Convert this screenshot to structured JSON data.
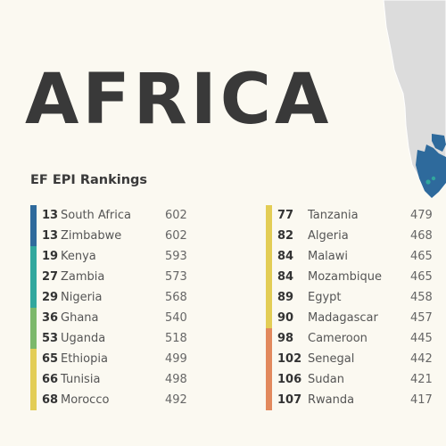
{
  "page": {
    "title": "AFRICA",
    "subtitle": "EF EPI Rankings"
  },
  "colors": {
    "background": "#fbf9f1",
    "very_high": "#2e6a9c",
    "high": "#31a79d",
    "moderate": "#7cb86a",
    "low": "#e3cd55",
    "very_low": "#e2895d",
    "map_land": "#dcdcdc",
    "map_country": "#2e6a9c"
  },
  "rankings": {
    "left": [
      {
        "rank": "13",
        "country": "South Africa",
        "score": "602",
        "color": "#2e6a9c"
      },
      {
        "rank": "13",
        "country": "Zimbabwe",
        "score": "602",
        "color": "#2e6a9c"
      },
      {
        "rank": "19",
        "country": "Kenya",
        "score": "593",
        "color": "#31a79d"
      },
      {
        "rank": "27",
        "country": "Zambia",
        "score": "573",
        "color": "#31a79d"
      },
      {
        "rank": "29",
        "country": "Nigeria",
        "score": "568",
        "color": "#31a79d"
      },
      {
        "rank": "36",
        "country": "Ghana",
        "score": "540",
        "color": "#7cb86a"
      },
      {
        "rank": "53",
        "country": "Uganda",
        "score": "518",
        "color": "#7cb86a"
      },
      {
        "rank": "65",
        "country": "Ethiopia",
        "score": "499",
        "color": "#e3cd55"
      },
      {
        "rank": "66",
        "country": "Tunisia",
        "score": "498",
        "color": "#e3cd55"
      },
      {
        "rank": "68",
        "country": "Morocco",
        "score": "492",
        "color": "#e3cd55"
      }
    ],
    "right": [
      {
        "rank": "77",
        "country": "Tanzania",
        "score": "479",
        "color": "#e3cd55"
      },
      {
        "rank": "82",
        "country": "Algeria",
        "score": "468",
        "color": "#e3cd55"
      },
      {
        "rank": "84",
        "country": "Malawi",
        "score": "465",
        "color": "#e3cd55"
      },
      {
        "rank": "84",
        "country": "Mozambique",
        "score": "465",
        "color": "#e3cd55"
      },
      {
        "rank": "89",
        "country": "Egypt",
        "score": "458",
        "color": "#e3cd55"
      },
      {
        "rank": "90",
        "country": "Madagascar",
        "score": "457",
        "color": "#e3cd55"
      },
      {
        "rank": "98",
        "country": "Cameroon",
        "score": "445",
        "color": "#e2895d"
      },
      {
        "rank": "102",
        "country": "Senegal",
        "score": "442",
        "color": "#e2895d"
      },
      {
        "rank": "106",
        "country": "Sudan",
        "score": "421",
        "color": "#e2895d"
      },
      {
        "rank": "107",
        "country": "Rwanda",
        "score": "417",
        "color": "#e2895d"
      }
    ]
  }
}
